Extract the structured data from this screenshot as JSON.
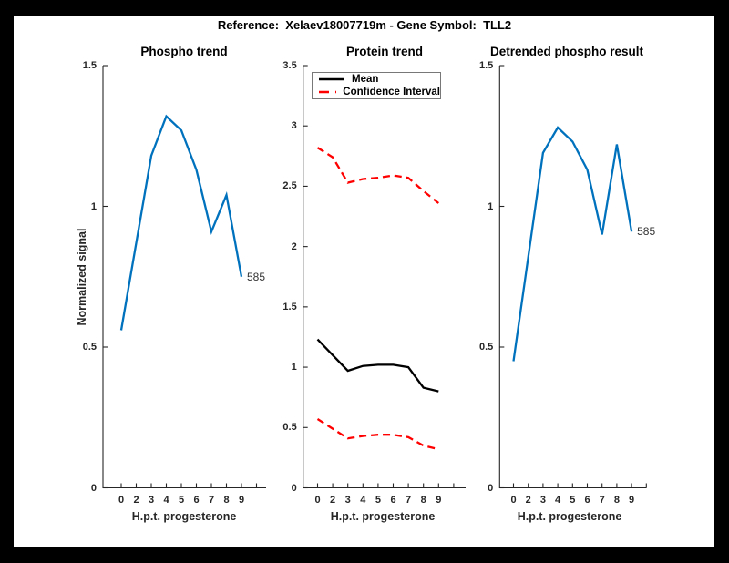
{
  "figure": {
    "suptitle": "Reference:  Xelaev18007719m - Gene Symbol:  TLL2",
    "background": "#000000",
    "paper": "#ffffff"
  },
  "colors": {
    "blue": "#0072BD",
    "red": "#FF0000",
    "black": "#000000",
    "axis_gray": "#262626"
  },
  "axis": {
    "xlabel": "H.p.t. progesterone",
    "xticklabels": [
      "0",
      "2",
      "3",
      "4",
      "5",
      "6",
      "7",
      "8",
      "9"
    ]
  },
  "chart_data": [
    {
      "type": "line",
      "title": "Phospho trend",
      "ylabel": "Normalized signal",
      "xlabel": "H.p.t. progesterone",
      "x": [
        0,
        2,
        3,
        4,
        5,
        6,
        7,
        8,
        9
      ],
      "ylim": [
        0,
        1.5
      ],
      "yticks": [
        0,
        0.5,
        1,
        1.5
      ],
      "grid": false,
      "series": [
        {
          "name": "phospho-signal",
          "color": "#0072BD",
          "style": "solid",
          "values": [
            0.56,
            0.87,
            1.18,
            1.32,
            1.27,
            1.13,
            0.91,
            1.04,
            0.75
          ]
        }
      ],
      "end_label": "585"
    },
    {
      "type": "line",
      "title": "Protein trend",
      "ylabel": "",
      "xlabel": "H.p.t. progesterone",
      "x": [
        0,
        2,
        3,
        4,
        5,
        6,
        7,
        8,
        9
      ],
      "ylim": [
        0,
        3.5
      ],
      "yticks": [
        0,
        0.5,
        1,
        1.5,
        2,
        2.5,
        3,
        3.5
      ],
      "grid": false,
      "legend": {
        "position": "top-left",
        "entries": [
          {
            "label": "Mean",
            "color": "#000000",
            "style": "solid"
          },
          {
            "label": "Confidence Interval",
            "color": "#FF0000",
            "style": "dashed"
          }
        ]
      },
      "series": [
        {
          "name": "mean",
          "color": "#000000",
          "style": "solid",
          "values": [
            1.23,
            1.1,
            0.97,
            1.01,
            1.02,
            1.02,
            1.0,
            0.83,
            0.8
          ]
        },
        {
          "name": "confidence-interval-upper",
          "color": "#FF0000",
          "style": "dashed",
          "values": [
            2.82,
            2.74,
            2.53,
            2.56,
            2.57,
            2.59,
            2.57,
            2.46,
            2.36
          ]
        },
        {
          "name": "confidence-interval-lower",
          "color": "#FF0000",
          "style": "dashed",
          "values": [
            0.57,
            0.49,
            0.41,
            0.43,
            0.44,
            0.44,
            0.42,
            0.35,
            0.32
          ]
        }
      ]
    },
    {
      "type": "line",
      "title": "Detrended phospho result",
      "ylabel": "",
      "xlabel": "H.p.t. progesterone",
      "x": [
        0,
        2,
        3,
        4,
        5,
        6,
        7,
        8,
        9
      ],
      "ylim": [
        0,
        1.5
      ],
      "yticks": [
        0,
        0.5,
        1,
        1.5
      ],
      "grid": false,
      "series": [
        {
          "name": "detrended-phospho",
          "color": "#0072BD",
          "style": "solid",
          "values": [
            0.45,
            0.82,
            1.19,
            1.28,
            1.23,
            1.13,
            0.9,
            1.22,
            0.91
          ]
        }
      ],
      "end_label": "585"
    }
  ]
}
